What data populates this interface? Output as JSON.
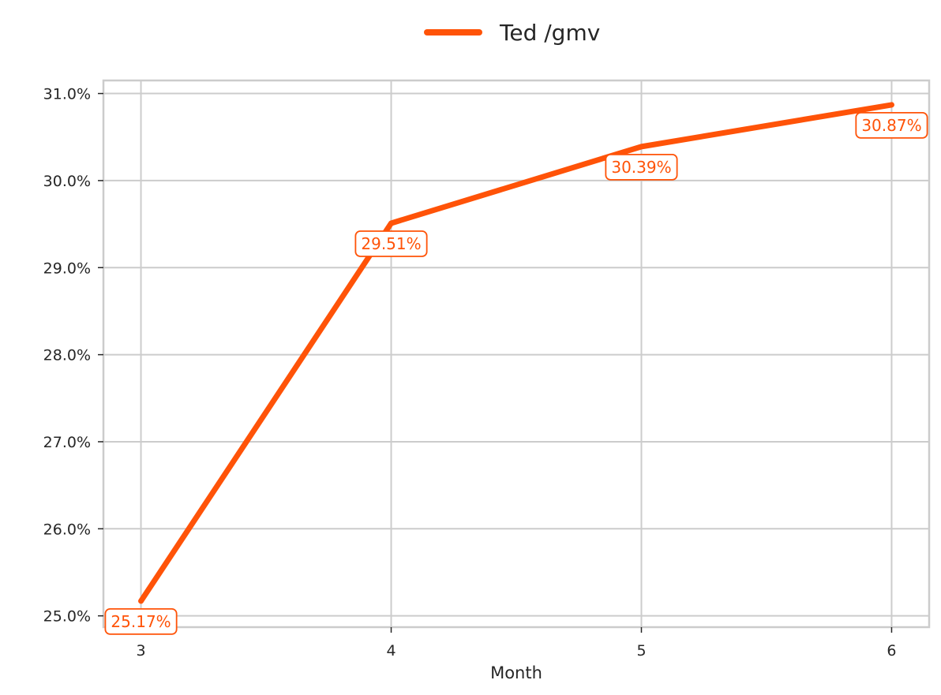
{
  "chart_data": {
    "type": "line",
    "x": [
      3,
      4,
      5,
      6
    ],
    "series": [
      {
        "name": "Ted /gmv",
        "values": [
          25.17,
          29.51,
          30.39,
          30.87
        ],
        "labels": [
          "25.17%",
          "29.51%",
          "30.39%",
          "30.87%"
        ],
        "color": "#ff5308"
      }
    ],
    "xlabel": "Month",
    "ylabel": "",
    "x_ticks": [
      "3",
      "4",
      "5",
      "6"
    ],
    "y_ticks": [
      25,
      26,
      27,
      28,
      29,
      30,
      31
    ],
    "y_tick_labels": [
      "25.0%",
      "26.0%",
      "27.0%",
      "28.0%",
      "29.0%",
      "30.0%",
      "31.0%"
    ],
    "xlim": [
      2.85,
      6.15
    ],
    "ylim": [
      24.87,
      31.15
    ],
    "grid": true,
    "legend_position": "top-center",
    "colors": {
      "grid": "#cccccc",
      "frame": "#cccccc",
      "text": "#262626",
      "background": "#ffffff"
    }
  }
}
